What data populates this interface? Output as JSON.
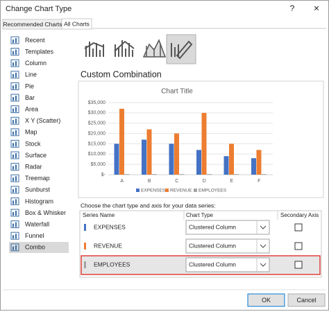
{
  "window": {
    "title": "Change Chart Type",
    "help": "?",
    "close": "×"
  },
  "tabs": [
    "Recommended Charts",
    "All Charts"
  ],
  "chart_types": [
    "Recent",
    "Templates",
    "Column",
    "Line",
    "Pie",
    "Bar",
    "Area",
    "X Y (Scatter)",
    "Map",
    "Stock",
    "Surface",
    "Radar",
    "Treemap",
    "Sunburst",
    "Histogram",
    "Box & Whisker",
    "Waterfall",
    "Funnel",
    "Combo"
  ],
  "heading": "Custom Combination",
  "chart_data": {
    "type": "bar",
    "title": "Chart Title",
    "categories": [
      "A",
      "B",
      "C",
      "D",
      "E",
      "F"
    ],
    "series": [
      {
        "name": "EXPENSES",
        "color": "#4472c4",
        "values": [
          15000,
          17000,
          15000,
          12000,
          9000,
          8000
        ]
      },
      {
        "name": "REVENUE",
        "color": "#ed7d31",
        "values": [
          32000,
          22000,
          20000,
          30000,
          15000,
          12000
        ]
      },
      {
        "name": "EMPLOYEES",
        "color": "#a5a5a5",
        "values": [
          300,
          300,
          300,
          300,
          300,
          300
        ]
      }
    ],
    "ylim": [
      0,
      35000
    ],
    "yticks": [
      {
        "value": 0,
        "label": "$-"
      },
      {
        "value": 5000,
        "label": "$5,000"
      },
      {
        "value": 10000,
        "label": "$10,000"
      },
      {
        "value": 15000,
        "label": "$15,000"
      },
      {
        "value": 20000,
        "label": "$20,000"
      },
      {
        "value": 25000,
        "label": "$25,000"
      },
      {
        "value": 30000,
        "label": "$30,000"
      },
      {
        "value": 35000,
        "label": "$35,000"
      }
    ],
    "grid": true,
    "legend": "bottom"
  },
  "prompt": "Choose the chart type and axis for your data series:",
  "series_table": {
    "headers": [
      "Series Name",
      "Chart Type",
      "Secondary Axis"
    ],
    "rows": [
      {
        "name": "EXPENSES",
        "chart_type": "Clustered Column"
      },
      {
        "name": "REVENUE",
        "chart_type": "Clustered Column"
      },
      {
        "name": "EMPLOYEES",
        "chart_type": "Clustered Column"
      }
    ]
  },
  "buttons": [
    "OK",
    "Cancel"
  ]
}
